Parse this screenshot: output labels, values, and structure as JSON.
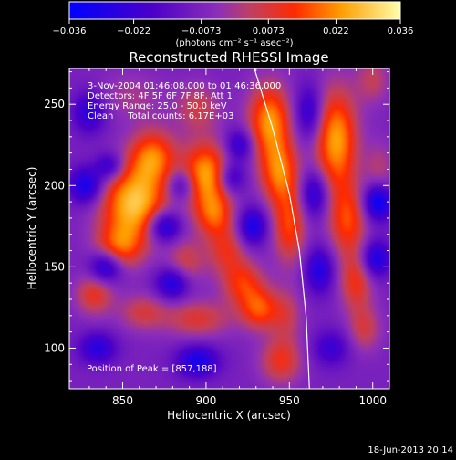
{
  "chart_data": {
    "type": "heatmap",
    "title": "Reconstructed RHESSI Image",
    "xlabel": "Heliocentric X (arcsec)",
    "ylabel": "Heliocentric Y (arcsec)",
    "xlim": [
      818,
      1010
    ],
    "ylim": [
      75,
      272
    ],
    "x_ticks": [
      850,
      900,
      950,
      1000
    ],
    "y_ticks": [
      100,
      150,
      200,
      250
    ],
    "x_tick_labels": [
      "850",
      "900",
      "950",
      "1000"
    ],
    "y_tick_labels": [
      "100",
      "150",
      "200",
      "250"
    ],
    "colorbar": {
      "min": -0.036,
      "max": 0.036,
      "tick_values": [
        -0.036,
        -0.022,
        -0.0073,
        0.0073,
        0.022,
        0.036
      ],
      "tick_labels": [
        "−0.036",
        "−0.022",
        "−0.0073",
        "0.0073",
        "0.022",
        "0.036"
      ],
      "units_label": "(photons cm⁻² s⁻¹ asec⁻²)",
      "placement": "top"
    },
    "annotations": [
      "3-Nov-2004 01:46:08.000 to 01:46:36.000",
      "Detectors: 4F 5F 6F 7F 8F, Att 1",
      "Energy Range: 25.0 - 50.0 keV",
      "Clean     Total counts: 6.17E+03"
    ],
    "peak_label": "Position of Peak = [857,188]",
    "peak_position": [
      857,
      188
    ],
    "limb_curve": [
      [
        929,
        272
      ],
      [
        940,
        235
      ],
      [
        950,
        195
      ],
      [
        956,
        160
      ],
      [
        960,
        120
      ],
      [
        962,
        75
      ]
    ],
    "blobs": [
      {
        "x": 857,
        "y": 189,
        "sx": 14,
        "sy": 16,
        "v": 0.036
      },
      {
        "x": 868,
        "y": 218,
        "sx": 10,
        "sy": 12,
        "v": 0.026
      },
      {
        "x": 848,
        "y": 162,
        "sx": 10,
        "sy": 10,
        "v": 0.022
      },
      {
        "x": 833,
        "y": 133,
        "sx": 8,
        "sy": 9,
        "v": 0.018
      },
      {
        "x": 862,
        "y": 122,
        "sx": 10,
        "sy": 8,
        "v": 0.014
      },
      {
        "x": 895,
        "y": 118,
        "sx": 14,
        "sy": 8,
        "v": 0.016
      },
      {
        "x": 888,
        "y": 153,
        "sx": 8,
        "sy": 10,
        "v": 0.014
      },
      {
        "x": 900,
        "y": 207,
        "sx": 10,
        "sy": 14,
        "v": 0.032
      },
      {
        "x": 905,
        "y": 182,
        "sx": 8,
        "sy": 10,
        "v": 0.022
      },
      {
        "x": 912,
        "y": 160,
        "sx": 8,
        "sy": 10,
        "v": 0.016
      },
      {
        "x": 922,
        "y": 140,
        "sx": 9,
        "sy": 10,
        "v": 0.02
      },
      {
        "x": 932,
        "y": 124,
        "sx": 8,
        "sy": 9,
        "v": 0.022
      },
      {
        "x": 895,
        "y": 248,
        "sx": 9,
        "sy": 10,
        "v": 0.014
      },
      {
        "x": 938,
        "y": 240,
        "sx": 9,
        "sy": 16,
        "v": 0.03
      },
      {
        "x": 944,
        "y": 208,
        "sx": 8,
        "sy": 14,
        "v": 0.026
      },
      {
        "x": 950,
        "y": 175,
        "sx": 7,
        "sy": 16,
        "v": 0.022
      },
      {
        "x": 948,
        "y": 120,
        "sx": 7,
        "sy": 12,
        "v": 0.012
      },
      {
        "x": 945,
        "y": 92,
        "sx": 9,
        "sy": 10,
        "v": 0.018
      },
      {
        "x": 978,
        "y": 228,
        "sx": 9,
        "sy": 22,
        "v": 0.032
      },
      {
        "x": 985,
        "y": 178,
        "sx": 8,
        "sy": 16,
        "v": 0.022
      },
      {
        "x": 990,
        "y": 140,
        "sx": 7,
        "sy": 12,
        "v": 0.018
      },
      {
        "x": 995,
        "y": 112,
        "sx": 7,
        "sy": 10,
        "v": 0.014
      },
      {
        "x": 1004,
        "y": 210,
        "sx": 6,
        "sy": 12,
        "v": 0.01
      },
      {
        "x": 1000,
        "y": 265,
        "sx": 7,
        "sy": 10,
        "v": 0.012
      },
      {
        "x": 855,
        "y": 255,
        "sx": 14,
        "sy": 10,
        "v": 0.008
      },
      {
        "x": 830,
        "y": 245,
        "sx": 7,
        "sy": 9,
        "v": -0.018
      },
      {
        "x": 828,
        "y": 200,
        "sx": 7,
        "sy": 8,
        "v": -0.024
      },
      {
        "x": 842,
        "y": 212,
        "sx": 6,
        "sy": 6,
        "v": -0.018
      },
      {
        "x": 840,
        "y": 150,
        "sx": 7,
        "sy": 7,
        "v": -0.024
      },
      {
        "x": 875,
        "y": 175,
        "sx": 7,
        "sy": 7,
        "v": -0.026
      },
      {
        "x": 880,
        "y": 140,
        "sx": 7,
        "sy": 7,
        "v": -0.022
      },
      {
        "x": 885,
        "y": 200,
        "sx": 6,
        "sy": 7,
        "v": -0.018
      },
      {
        "x": 915,
        "y": 205,
        "sx": 6,
        "sy": 7,
        "v": -0.018
      },
      {
        "x": 920,
        "y": 225,
        "sx": 6,
        "sy": 7,
        "v": -0.018
      },
      {
        "x": 928,
        "y": 175,
        "sx": 6,
        "sy": 8,
        "v": -0.022
      },
      {
        "x": 895,
        "y": 92,
        "sx": 9,
        "sy": 7,
        "v": -0.022
      },
      {
        "x": 835,
        "y": 100,
        "sx": 8,
        "sy": 7,
        "v": -0.018
      },
      {
        "x": 962,
        "y": 245,
        "sx": 6,
        "sy": 12,
        "v": -0.018
      },
      {
        "x": 965,
        "y": 195,
        "sx": 6,
        "sy": 10,
        "v": -0.02
      },
      {
        "x": 968,
        "y": 148,
        "sx": 6,
        "sy": 10,
        "v": -0.02
      },
      {
        "x": 1003,
        "y": 190,
        "sx": 6,
        "sy": 8,
        "v": -0.028
      },
      {
        "x": 1002,
        "y": 155,
        "sx": 6,
        "sy": 8,
        "v": -0.022
      },
      {
        "x": 975,
        "y": 100,
        "sx": 8,
        "sy": 8,
        "v": -0.014
      }
    ],
    "background_value": -0.008
  },
  "footer": {
    "date": "18-Jun-2013 20:14"
  }
}
